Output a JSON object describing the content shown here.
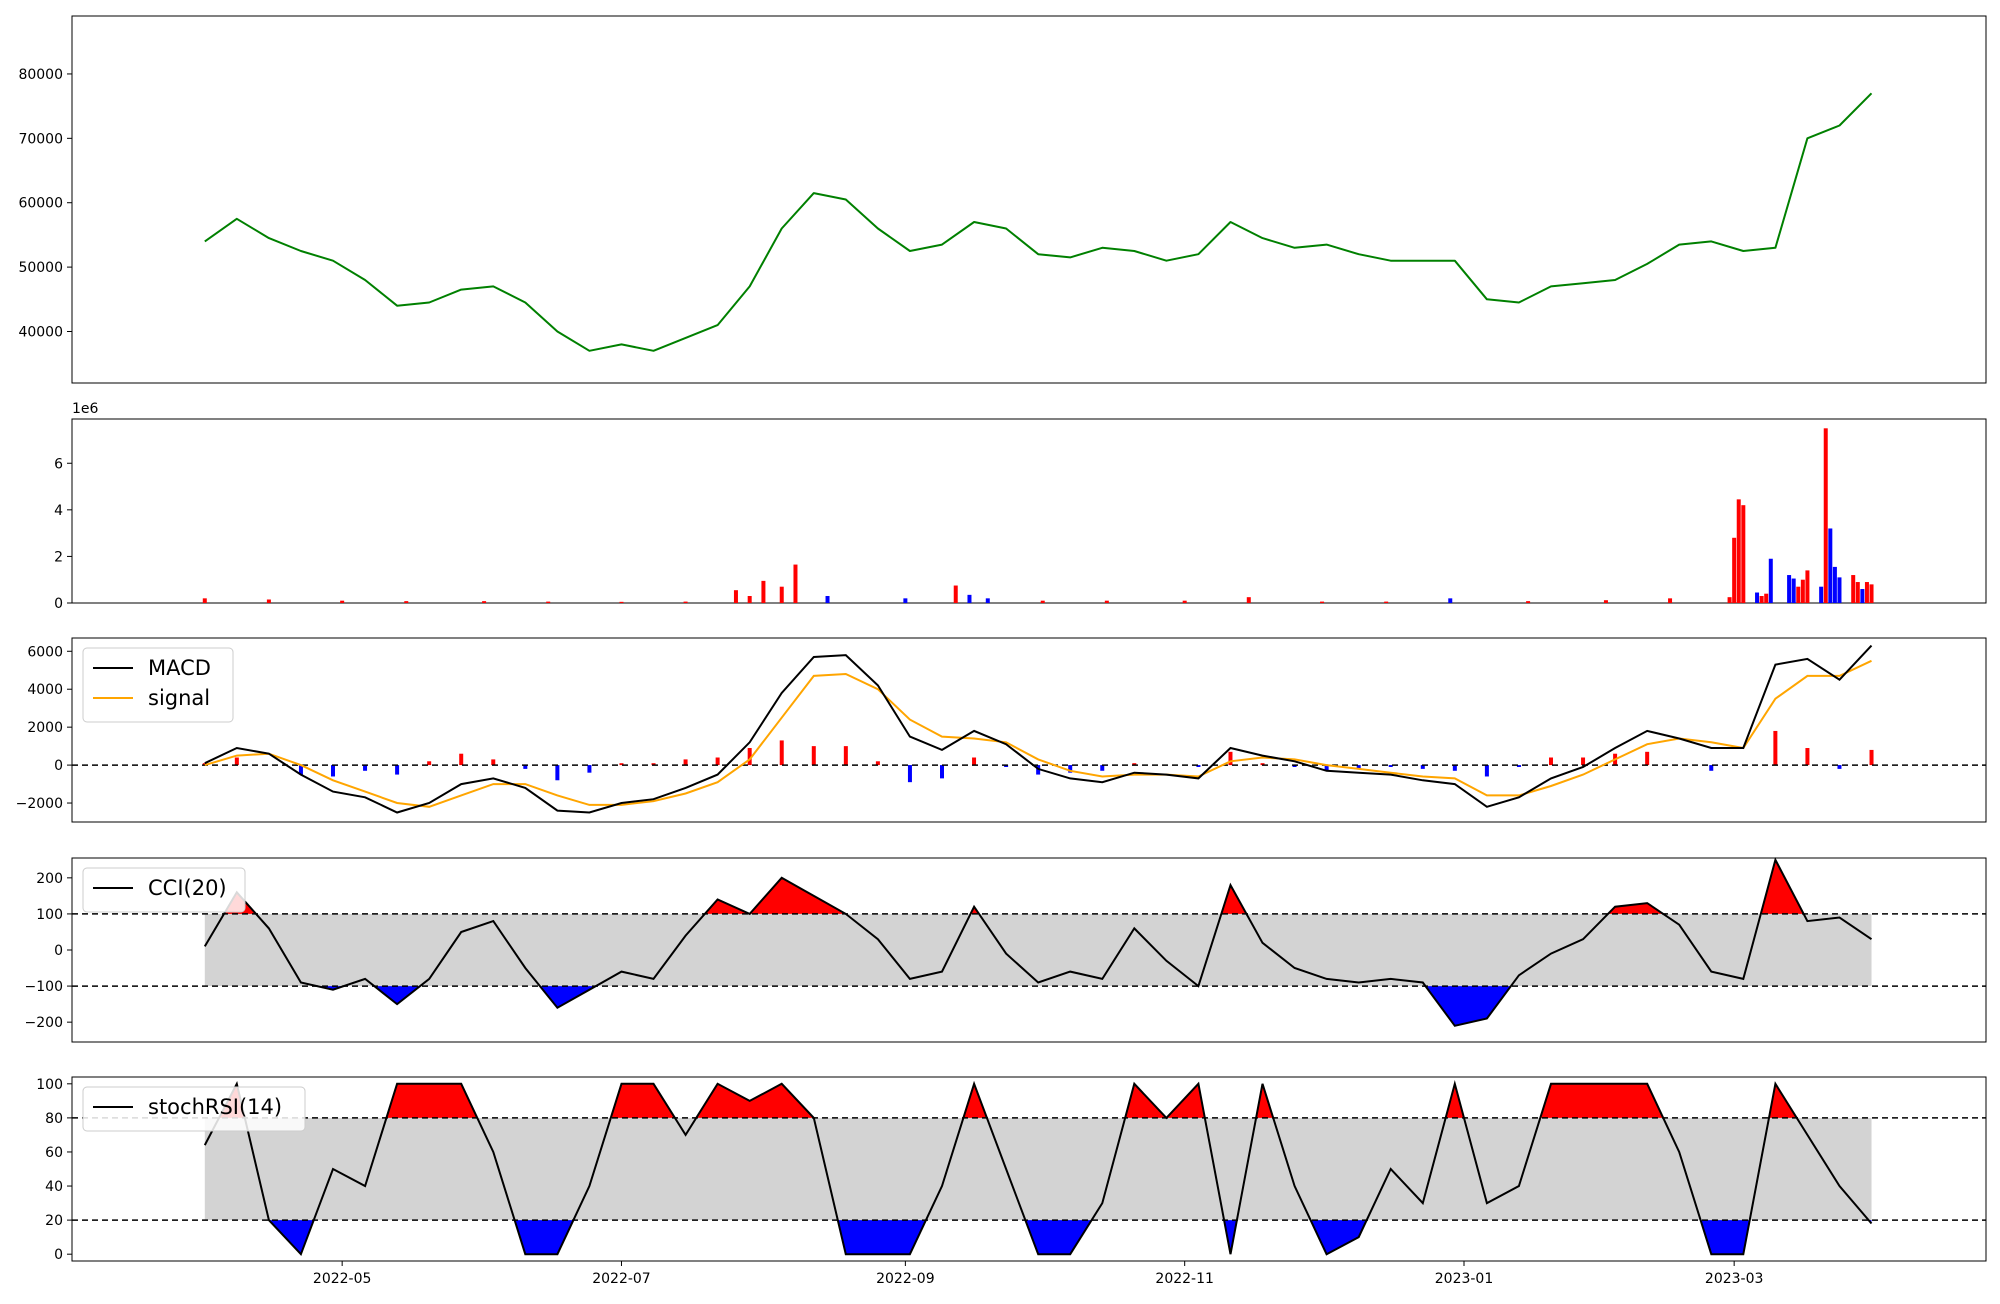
{
  "colors": {
    "price_line": "#008000",
    "up": "#ff0000",
    "down": "#0000ff",
    "signal": "#ffa500",
    "band": "#d3d3d3",
    "line": "#000000"
  },
  "chart_data": [
    {
      "type": "line",
      "panel": "price",
      "title": "",
      "ylim": [
        32000,
        89000
      ],
      "yticks": [
        "40000",
        "50000",
        "60000",
        "70000",
        "80000"
      ],
      "x": [
        "2022-04-01",
        "2022-04-08",
        "2022-04-15",
        "2022-04-22",
        "2022-04-29",
        "2022-05-06",
        "2022-05-13",
        "2022-05-20",
        "2022-05-27",
        "2022-06-03",
        "2022-06-10",
        "2022-06-17",
        "2022-06-24",
        "2022-07-01",
        "2022-07-08",
        "2022-07-15",
        "2022-07-22",
        "2022-07-29",
        "2022-08-05",
        "2022-08-12",
        "2022-08-19",
        "2022-08-26",
        "2022-09-02",
        "2022-09-09",
        "2022-09-16",
        "2022-09-23",
        "2022-09-30",
        "2022-10-07",
        "2022-10-14",
        "2022-10-21",
        "2022-10-28",
        "2022-11-04",
        "2022-11-11",
        "2022-11-18",
        "2022-11-25",
        "2022-12-02",
        "2022-12-09",
        "2022-12-16",
        "2022-12-23",
        "2022-12-30",
        "2023-01-06",
        "2023-01-13",
        "2023-01-20",
        "2023-01-27",
        "2023-02-03",
        "2023-02-10",
        "2023-02-17",
        "2023-02-24",
        "2023-03-03",
        "2023-03-10",
        "2023-03-17",
        "2023-03-24",
        "2023-03-31"
      ],
      "series": [
        {
          "values": [
            54000,
            57500,
            54500,
            52500,
            51000,
            48000,
            44000,
            44500,
            46500,
            47000,
            44500,
            40000,
            37000,
            38000,
            37000,
            39000,
            41000,
            47000,
            56000,
            61500,
            60500,
            56000,
            52500,
            53500,
            57000,
            56000,
            52000,
            51500,
            53000,
            52500,
            51000,
            52000,
            57000,
            54500,
            53000,
            53500,
            52000,
            51000,
            51000,
            51000,
            45000,
            44500,
            47000,
            47500,
            48000,
            50500,
            53500,
            54000,
            52500,
            53000,
            70000,
            72000,
            77000
          ]
        }
      ]
    },
    {
      "type": "bar",
      "panel": "volume",
      "ylim": [
        0,
        7900000
      ],
      "yticks": [
        "0",
        "2",
        "4",
        "6"
      ],
      "offset_label": "1e6",
      "x": [
        "2022-04-01",
        "2022-04-15",
        "2022-05-01",
        "2022-05-15",
        "2022-06-01",
        "2022-06-15",
        "2022-07-01",
        "2022-07-15",
        "2022-07-26",
        "2022-07-29",
        "2022-08-01",
        "2022-08-05",
        "2022-08-08",
        "2022-08-15",
        "2022-09-01",
        "2022-09-12",
        "2022-09-15",
        "2022-09-19",
        "2022-10-01",
        "2022-10-15",
        "2022-11-01",
        "2022-11-15",
        "2022-12-01",
        "2022-12-15",
        "2022-12-29",
        "2023-01-15",
        "2023-02-01",
        "2023-02-15",
        "2023-02-28",
        "2023-03-01",
        "2023-03-02",
        "2023-03-03",
        "2023-03-06",
        "2023-03-07",
        "2023-03-08",
        "2023-03-09",
        "2023-03-13",
        "2023-03-14",
        "2023-03-15",
        "2023-03-16",
        "2023-03-17",
        "2023-03-20",
        "2023-03-21",
        "2023-03-22",
        "2023-03-23",
        "2023-03-24",
        "2023-03-27",
        "2023-03-28",
        "2023-03-29",
        "2023-03-30",
        "2023-03-31"
      ],
      "values": [
        200000,
        150000,
        100000,
        80000,
        80000,
        60000,
        50000,
        60000,
        550000,
        300000,
        950000,
        700000,
        1650000,
        300000,
        200000,
        750000,
        350000,
        200000,
        100000,
        100000,
        100000,
        250000,
        60000,
        60000,
        200000,
        80000,
        120000,
        200000,
        250000,
        2800000,
        4450000,
        4200000,
        450000,
        300000,
        400000,
        1900000,
        1200000,
        1050000,
        700000,
        1000000,
        1400000,
        700000,
        7500000,
        3200000,
        1550000,
        1100000,
        1200000,
        900000,
        600000,
        900000,
        800000
      ],
      "up": [
        true,
        true,
        true,
        true,
        true,
        true,
        true,
        true,
        true,
        true,
        true,
        true,
        true,
        false,
        false,
        true,
        false,
        false,
        true,
        true,
        true,
        true,
        true,
        true,
        false,
        true,
        true,
        true,
        true,
        true,
        true,
        true,
        false,
        true,
        true,
        false,
        false,
        false,
        true,
        true,
        true,
        false,
        true,
        false,
        false,
        false,
        true,
        true,
        false,
        true,
        true
      ]
    },
    {
      "type": "line",
      "panel": "macd",
      "ylim": [
        -3000,
        6700
      ],
      "yticks": [
        "−2000",
        "0",
        "2000",
        "4000",
        "6000"
      ],
      "legend": [
        "MACD",
        "signal"
      ],
      "x": [
        "2022-04-01",
        "2022-04-08",
        "2022-04-15",
        "2022-04-22",
        "2022-04-29",
        "2022-05-06",
        "2022-05-13",
        "2022-05-20",
        "2022-05-27",
        "2022-06-03",
        "2022-06-10",
        "2022-06-17",
        "2022-06-24",
        "2022-07-01",
        "2022-07-08",
        "2022-07-15",
        "2022-07-22",
        "2022-07-29",
        "2022-08-05",
        "2022-08-12",
        "2022-08-19",
        "2022-08-26",
        "2022-09-02",
        "2022-09-09",
        "2022-09-16",
        "2022-09-23",
        "2022-09-30",
        "2022-10-07",
        "2022-10-14",
        "2022-10-21",
        "2022-10-28",
        "2022-11-04",
        "2022-11-11",
        "2022-11-18",
        "2022-11-25",
        "2022-12-02",
        "2022-12-09",
        "2022-12-16",
        "2022-12-23",
        "2022-12-30",
        "2023-01-06",
        "2023-01-13",
        "2023-01-20",
        "2023-01-27",
        "2023-02-03",
        "2023-02-10",
        "2023-02-17",
        "2023-02-24",
        "2023-03-03",
        "2023-03-10",
        "2023-03-17",
        "2023-03-24",
        "2023-03-31"
      ],
      "series": [
        {
          "name": "MACD",
          "values": [
            100,
            900,
            600,
            -500,
            -1400,
            -1700,
            -2500,
            -2000,
            -1000,
            -700,
            -1200,
            -2400,
            -2500,
            -2000,
            -1800,
            -1200,
            -500,
            1200,
            3800,
            5700,
            5800,
            4200,
            1500,
            800,
            1800,
            1100,
            -200,
            -700,
            -900,
            -400,
            -500,
            -700,
            900,
            500,
            200,
            -300,
            -400,
            -500,
            -800,
            -1000,
            -2200,
            -1700,
            -700,
            -100,
            900,
            1800,
            1400,
            900,
            900,
            5300,
            5600,
            4500,
            6300
          ]
        },
        {
          "name": "signal",
          "values": [
            0,
            500,
            600,
            0,
            -800,
            -1400,
            -2000,
            -2200,
            -1600,
            -1000,
            -1000,
            -1600,
            -2100,
            -2100,
            -1900,
            -1500,
            -900,
            300,
            2500,
            4700,
            4800,
            4000,
            2400,
            1500,
            1400,
            1200,
            300,
            -300,
            -600,
            -500,
            -500,
            -600,
            200,
            400,
            300,
            0,
            -200,
            -400,
            -600,
            -700,
            -1600,
            -1600,
            -1100,
            -500,
            300,
            1100,
            1400,
            1200,
            900,
            3500,
            4700,
            4700,
            5500
          ]
        }
      ],
      "histogram": [
        100,
        400,
        0,
        -500,
        -600,
        -300,
        -500,
        200,
        600,
        300,
        -200,
        -800,
        -400,
        100,
        100,
        300,
        400,
        900,
        1300,
        1000,
        1000,
        200,
        -900,
        -700,
        400,
        -100,
        -500,
        -400,
        -300,
        100,
        0,
        -100,
        700,
        100,
        -100,
        -300,
        -200,
        -100,
        -200,
        -300,
        -600,
        -100,
        400,
        400,
        600,
        700,
        0,
        -300,
        0,
        1800,
        900,
        -200,
        800
      ]
    },
    {
      "type": "line",
      "panel": "cci",
      "ylim": [
        -255,
        255
      ],
      "yticks": [
        "−200",
        "−100",
        "0",
        "100",
        "200"
      ],
      "legend": [
        "CCI(20)"
      ],
      "thresholds": [
        100,
        -100
      ],
      "x": [
        "2022-04-01",
        "2022-04-08",
        "2022-04-15",
        "2022-04-22",
        "2022-04-29",
        "2022-05-06",
        "2022-05-13",
        "2022-05-20",
        "2022-05-27",
        "2022-06-03",
        "2022-06-10",
        "2022-06-17",
        "2022-06-24",
        "2022-07-01",
        "2022-07-08",
        "2022-07-15",
        "2022-07-22",
        "2022-07-29",
        "2022-08-05",
        "2022-08-12",
        "2022-08-19",
        "2022-08-26",
        "2022-09-02",
        "2022-09-09",
        "2022-09-16",
        "2022-09-23",
        "2022-09-30",
        "2022-10-07",
        "2022-10-14",
        "2022-10-21",
        "2022-10-28",
        "2022-11-04",
        "2022-11-11",
        "2022-11-18",
        "2022-11-25",
        "2022-12-02",
        "2022-12-09",
        "2022-12-16",
        "2022-12-23",
        "2022-12-30",
        "2023-01-06",
        "2023-01-13",
        "2023-01-20",
        "2023-01-27",
        "2023-02-03",
        "2023-02-10",
        "2023-02-17",
        "2023-02-24",
        "2023-03-03",
        "2023-03-10",
        "2023-03-17",
        "2023-03-24",
        "2023-03-31"
      ],
      "series": [
        {
          "name": "CCI(20)",
          "values": [
            10,
            160,
            60,
            -90,
            -110,
            -80,
            -150,
            -80,
            50,
            80,
            -50,
            -160,
            -110,
            -60,
            -80,
            40,
            140,
            100,
            200,
            150,
            100,
            30,
            -80,
            -60,
            120,
            -10,
            -90,
            -60,
            -80,
            60,
            -30,
            -100,
            180,
            20,
            -50,
            -80,
            -90,
            -80,
            -90,
            -210,
            -190,
            -70,
            -10,
            30,
            120,
            130,
            70,
            -60,
            -80,
            250,
            80,
            90,
            30
          ]
        }
      ]
    },
    {
      "type": "line",
      "panel": "stochrsi",
      "ylim": [
        -4,
        104
      ],
      "yticks": [
        "0",
        "20",
        "40",
        "60",
        "80",
        "100"
      ],
      "legend": [
        "stochRSI(14)"
      ],
      "thresholds": [
        80,
        20
      ],
      "x": [
        "2022-04-01",
        "2022-04-08",
        "2022-04-15",
        "2022-04-22",
        "2022-04-29",
        "2022-05-06",
        "2022-05-13",
        "2022-05-20",
        "2022-05-27",
        "2022-06-03",
        "2022-06-10",
        "2022-06-17",
        "2022-06-24",
        "2022-07-01",
        "2022-07-08",
        "2022-07-15",
        "2022-07-22",
        "2022-07-29",
        "2022-08-05",
        "2022-08-12",
        "2022-08-19",
        "2022-08-26",
        "2022-09-02",
        "2022-09-09",
        "2022-09-16",
        "2022-09-23",
        "2022-09-30",
        "2022-10-07",
        "2022-10-14",
        "2022-10-21",
        "2022-10-28",
        "2022-11-04",
        "2022-11-11",
        "2022-11-18",
        "2022-11-25",
        "2022-12-02",
        "2022-12-09",
        "2022-12-16",
        "2022-12-23",
        "2022-12-30",
        "2023-01-06",
        "2023-01-13",
        "2023-01-20",
        "2023-01-27",
        "2023-02-03",
        "2023-02-10",
        "2023-02-17",
        "2023-02-24",
        "2023-03-03",
        "2023-03-10",
        "2023-03-17",
        "2023-03-24",
        "2023-03-31"
      ],
      "series": [
        {
          "name": "stochRSI(14)",
          "values": [
            64,
            100,
            20,
            0,
            50,
            40,
            100,
            100,
            100,
            60,
            0,
            0,
            40,
            100,
            100,
            70,
            100,
            90,
            100,
            80,
            0,
            0,
            0,
            40,
            100,
            50,
            0,
            0,
            30,
            100,
            80,
            100,
            0,
            100,
            40,
            0,
            10,
            50,
            30,
            100,
            30,
            40,
            100,
            100,
            100,
            100,
            60,
            0,
            0,
            100,
            70,
            40,
            18
          ]
        }
      ]
    }
  ],
  "x_axis": {
    "ticks": [
      {
        "date": "2022-05-01",
        "label": "2022-05"
      },
      {
        "date": "2022-07-01",
        "label": "2022-07"
      },
      {
        "date": "2022-09-01",
        "label": "2022-09"
      },
      {
        "date": "2022-11-01",
        "label": "2022-11"
      },
      {
        "date": "2023-01-01",
        "label": "2023-01"
      },
      {
        "date": "2023-03-01",
        "label": "2023-03"
      }
    ],
    "range": [
      "2022-03-03",
      "2023-04-25"
    ]
  }
}
